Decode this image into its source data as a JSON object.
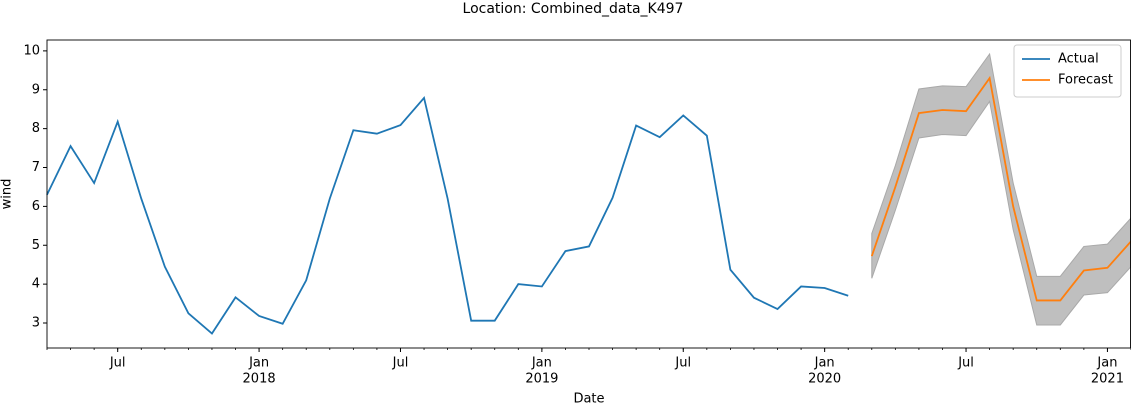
{
  "chart_data": {
    "type": "line",
    "title": "Location: Combined_data_K497",
    "xlabel": "Date",
    "ylabel": "wind",
    "series": [
      {
        "name": "Actual",
        "color": "#1f77b4",
        "x": [
          "2017-04",
          "2017-05",
          "2017-06",
          "2017-07",
          "2017-08",
          "2017-09",
          "2017-10",
          "2017-11",
          "2017-12",
          "2018-01",
          "2018-02",
          "2018-03",
          "2018-04",
          "2018-05",
          "2018-06",
          "2018-07",
          "2018-08",
          "2018-09",
          "2018-10",
          "2018-11",
          "2018-12",
          "2019-01",
          "2019-02",
          "2019-03",
          "2019-04",
          "2019-05",
          "2019-06",
          "2019-07",
          "2019-08",
          "2019-09",
          "2019-10",
          "2019-11",
          "2019-12",
          "2020-01",
          "2020-02"
        ],
        "values": [
          6.3,
          7.55,
          6.6,
          8.18,
          6.2,
          4.45,
          3.25,
          2.73,
          3.66,
          3.18,
          2.98,
          4.1,
          6.2,
          7.96,
          7.87,
          8.09,
          8.79,
          6.2,
          3.06,
          3.06,
          4.0,
          3.94,
          4.85,
          4.97,
          6.22,
          8.08,
          7.78,
          8.34,
          7.82,
          4.37,
          3.65,
          3.36,
          3.94,
          3.9,
          3.7
        ]
      },
      {
        "name": "Forecast",
        "color": "#ff7f0e",
        "x": [
          "2020-03",
          "2020-04",
          "2020-05",
          "2020-06",
          "2020-07",
          "2020-08",
          "2020-09",
          "2020-10",
          "2020-11",
          "2020-12",
          "2021-01",
          "2021-02"
        ],
        "values": [
          4.72,
          6.5,
          8.4,
          8.48,
          8.45,
          9.3,
          6.0,
          3.58,
          3.58,
          4.35,
          4.42,
          5.1
        ],
        "lower": [
          4.15,
          5.9,
          7.76,
          7.85,
          7.82,
          8.7,
          5.4,
          2.95,
          2.95,
          3.72,
          3.78,
          4.45
        ],
        "upper": [
          5.3,
          7.05,
          9.02,
          9.1,
          9.08,
          9.92,
          6.6,
          4.2,
          4.2,
          4.97,
          5.03,
          5.7
        ],
        "band_color": "#a9a9a9"
      }
    ],
    "xlim": [
      "2017-04",
      "2021-02"
    ],
    "xticks": [
      {
        "value": "2017-07",
        "label": "Jul"
      },
      {
        "value": "2018-01",
        "label": "Jan",
        "year": "2018"
      },
      {
        "value": "2018-07",
        "label": "Jul"
      },
      {
        "value": "2019-01",
        "label": "Jan",
        "year": "2019"
      },
      {
        "value": "2019-07",
        "label": "Jul"
      },
      {
        "value": "2020-01",
        "label": "Jan",
        "year": "2020"
      },
      {
        "value": "2020-07",
        "label": "Jul"
      },
      {
        "value": "2021-01",
        "label": "Jan",
        "year": "2021"
      }
    ],
    "ylim": [
      2.357,
      10.28
    ],
    "yticks": [
      3,
      4,
      5,
      6,
      7,
      8,
      9,
      10
    ],
    "legend": "upper right"
  }
}
